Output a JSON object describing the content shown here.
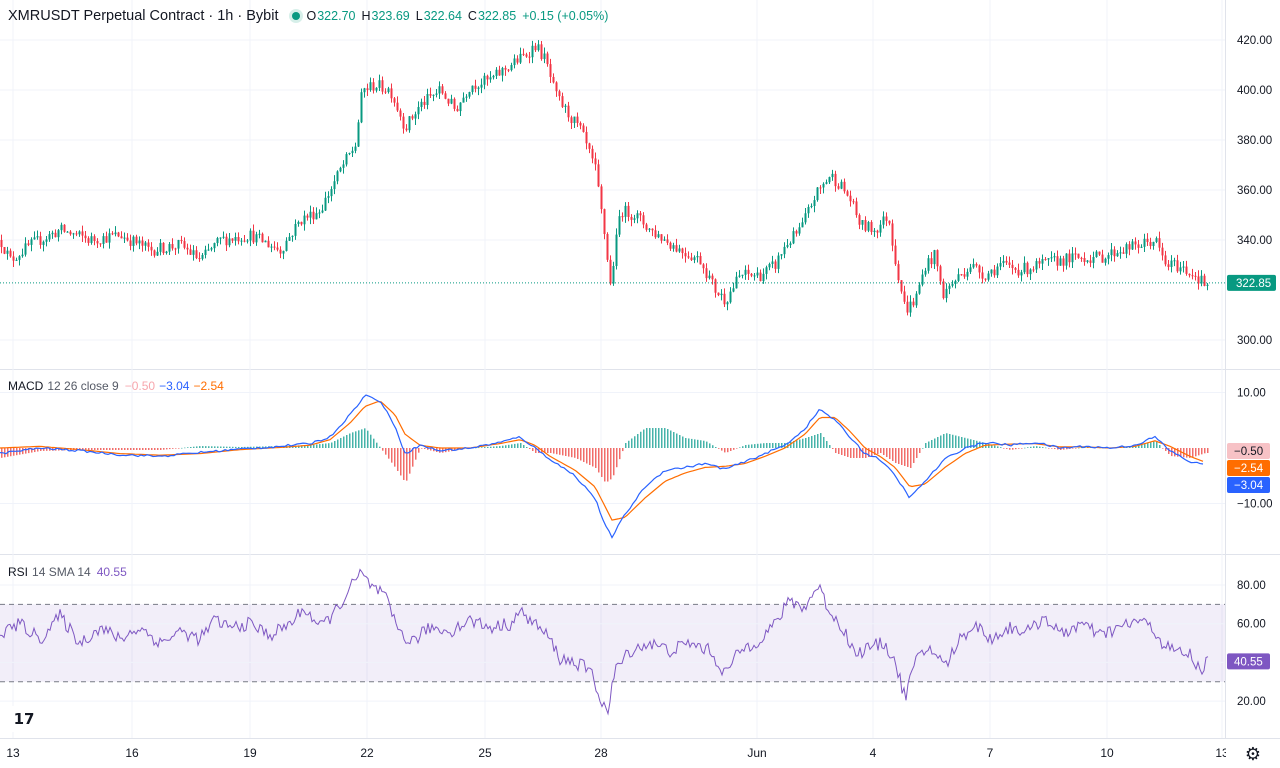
{
  "header": {
    "symbol_title": "XMRUSDT Perpetual Contract · 1h · Bybit",
    "ohlc": {
      "o_label": "O",
      "o": "322.70",
      "h_label": "H",
      "h": "323.69",
      "l_label": "L",
      "l": "322.64",
      "c_label": "C",
      "c": "322.85",
      "change": "+0.15 (+0.05%)"
    }
  },
  "macd_legend": {
    "name": "MACD",
    "params": "12 26 close 9",
    "hist": "−0.50",
    "macd": "−3.04",
    "signal": "−2.54"
  },
  "rsi_legend": {
    "name": "RSI",
    "params": "14 SMA 14",
    "value": "40.55"
  },
  "colors": {
    "up": "#089981",
    "down": "#f23645",
    "macd": "#2962ff",
    "signal": "#ff6d00",
    "rsi": "#7e57c2",
    "hist_up": "#26a69a",
    "hist_down": "#ef5350"
  },
  "icons": {
    "logo": "tradingview-logo-icon",
    "settings": "gear-icon"
  },
  "chart_data": [
    {
      "type": "candlestick",
      "title": "XMRUSDT Perpetual Contract · 1h · Bybit",
      "x_ticks": [
        "13",
        "16",
        "19",
        "22",
        "25",
        "28",
        "Jun",
        "4",
        "7",
        "10",
        "13"
      ],
      "y_ticks": [
        "420.00",
        "400.00",
        "380.00",
        "360.00",
        "340.00",
        "300.00"
      ],
      "ylim": [
        294,
        424
      ],
      "last_price": "322.85",
      "close_path": [
        [
          0,
          340
        ],
        [
          10,
          332
        ],
        [
          30,
          338
        ],
        [
          60,
          344
        ],
        [
          90,
          340
        ],
        [
          120,
          342
        ],
        [
          150,
          336
        ],
        [
          180,
          338
        ],
        [
          200,
          332
        ],
        [
          220,
          340
        ],
        [
          250,
          342
        ],
        [
          280,
          336
        ],
        [
          300,
          348
        ],
        [
          320,
          352
        ],
        [
          340,
          368
        ],
        [
          355,
          378
        ],
        [
          362,
          400
        ],
        [
          375,
          402
        ],
        [
          390,
          400
        ],
        [
          405,
          385
        ],
        [
          420,
          394
        ],
        [
          440,
          400
        ],
        [
          455,
          392
        ],
        [
          470,
          402
        ],
        [
          490,
          404
        ],
        [
          510,
          410
        ],
        [
          525,
          414
        ],
        [
          535,
          418
        ],
        [
          545,
          412
        ],
        [
          555,
          398
        ],
        [
          565,
          392
        ],
        [
          580,
          384
        ],
        [
          595,
          368
        ],
        [
          605,
          340
        ],
        [
          610,
          322
        ],
        [
          620,
          352
        ],
        [
          635,
          350
        ],
        [
          650,
          344
        ],
        [
          665,
          340
        ],
        [
          680,
          336
        ],
        [
          700,
          332
        ],
        [
          715,
          320
        ],
        [
          725,
          316
        ],
        [
          740,
          326
        ],
        [
          760,
          326
        ],
        [
          775,
          330
        ],
        [
          785,
          338
        ],
        [
          800,
          344
        ],
        [
          815,
          358
        ],
        [
          830,
          366
        ],
        [
          840,
          362
        ],
        [
          850,
          356
        ],
        [
          860,
          346
        ],
        [
          875,
          344
        ],
        [
          888,
          350
        ],
        [
          895,
          332
        ],
        [
          905,
          312
        ],
        [
          915,
          316
        ],
        [
          925,
          330
        ],
        [
          935,
          334
        ],
        [
          942,
          318
        ],
        [
          955,
          324
        ],
        [
          970,
          330
        ],
        [
          985,
          326
        ],
        [
          1000,
          330
        ],
        [
          1020,
          328
        ],
        [
          1040,
          330
        ],
        [
          1060,
          332
        ],
        [
          1080,
          333
        ],
        [
          1100,
          333
        ],
        [
          1120,
          336
        ],
        [
          1140,
          338
        ],
        [
          1155,
          340
        ],
        [
          1165,
          330
        ],
        [
          1175,
          330
        ],
        [
          1185,
          328
        ],
        [
          1195,
          326
        ],
        [
          1205,
          322
        ]
      ]
    },
    {
      "type": "line",
      "title": "MACD 12 26 close 9",
      "y_ticks": [
        "10.00",
        "−10.00"
      ],
      "ylim": [
        -17,
        12
      ],
      "series": [
        {
          "name": "MACD",
          "values": [
            [
              0,
              -1
            ],
            [
              40,
              0
            ],
            [
              80,
              -0.5
            ],
            [
              120,
              -1.2
            ],
            [
              160,
              -1.5
            ],
            [
              200,
              -0.8
            ],
            [
              240,
              -0.2
            ],
            [
              280,
              0.3
            ],
            [
              310,
              0.8
            ],
            [
              330,
              2
            ],
            [
              350,
              6
            ],
            [
              365,
              9.5
            ],
            [
              380,
              8.5
            ],
            [
              395,
              4
            ],
            [
              405,
              -1
            ],
            [
              420,
              0.5
            ],
            [
              440,
              -0.5
            ],
            [
              470,
              0
            ],
            [
              500,
              1
            ],
            [
              520,
              2
            ],
            [
              535,
              0
            ],
            [
              550,
              -2
            ],
            [
              575,
              -5
            ],
            [
              595,
              -9
            ],
            [
              605,
              -14
            ],
            [
              612,
              -16
            ],
            [
              625,
              -12
            ],
            [
              645,
              -7
            ],
            [
              665,
              -4
            ],
            [
              685,
              -3.5
            ],
            [
              705,
              -2.8
            ],
            [
              725,
              -3.8
            ],
            [
              745,
              -2.5
            ],
            [
              765,
              -1
            ],
            [
              785,
              0.5
            ],
            [
              805,
              3.5
            ],
            [
              820,
              7
            ],
            [
              835,
              5
            ],
            [
              850,
              2
            ],
            [
              865,
              -1
            ],
            [
              880,
              -2
            ],
            [
              895,
              -5
            ],
            [
              910,
              -9
            ],
            [
              925,
              -6
            ],
            [
              945,
              -2
            ],
            [
              965,
              0
            ],
            [
              985,
              1
            ],
            [
              1010,
              0.5
            ],
            [
              1035,
              1
            ],
            [
              1060,
              0
            ],
            [
              1085,
              0.3
            ],
            [
              1110,
              0
            ],
            [
              1135,
              0.5
            ],
            [
              1155,
              2
            ],
            [
              1170,
              -0.5
            ],
            [
              1190,
              -2.5
            ],
            [
              1205,
              -3.04
            ]
          ]
        },
        {
          "name": "Signal",
          "values": [
            [
              0,
              0
            ],
            [
              40,
              0.3
            ],
            [
              80,
              -0.3
            ],
            [
              120,
              -1
            ],
            [
              160,
              -1.3
            ],
            [
              200,
              -1
            ],
            [
              240,
              -0.3
            ],
            [
              280,
              0.1
            ],
            [
              310,
              0.5
            ],
            [
              330,
              1.5
            ],
            [
              350,
              4.5
            ],
            [
              365,
              7.5
            ],
            [
              380,
              8.5
            ],
            [
              395,
              6
            ],
            [
              405,
              2.5
            ],
            [
              420,
              0.5
            ],
            [
              440,
              0
            ],
            [
              470,
              0
            ],
            [
              500,
              0.8
            ],
            [
              520,
              1.5
            ],
            [
              535,
              0.5
            ],
            [
              550,
              -1.5
            ],
            [
              575,
              -4
            ],
            [
              595,
              -7
            ],
            [
              605,
              -10.5
            ],
            [
              612,
              -13
            ],
            [
              625,
              -12.5
            ],
            [
              645,
              -9
            ],
            [
              665,
              -6
            ],
            [
              685,
              -4.5
            ],
            [
              705,
              -3.5
            ],
            [
              725,
              -3.3
            ],
            [
              745,
              -2.8
            ],
            [
              765,
              -1.5
            ],
            [
              785,
              0
            ],
            [
              805,
              2.5
            ],
            [
              820,
              5.5
            ],
            [
              835,
              5.5
            ],
            [
              850,
              3
            ],
            [
              865,
              0
            ],
            [
              880,
              -1.5
            ],
            [
              895,
              -3.5
            ],
            [
              910,
              -7
            ],
            [
              925,
              -6.5
            ],
            [
              945,
              -3.5
            ],
            [
              965,
              -1
            ],
            [
              985,
              0.5
            ],
            [
              1010,
              0.7
            ],
            [
              1035,
              0.8
            ],
            [
              1060,
              0.2
            ],
            [
              1085,
              0.2
            ],
            [
              1110,
              0
            ],
            [
              1135,
              0.3
            ],
            [
              1155,
              1.3
            ],
            [
              1170,
              0.3
            ],
            [
              1190,
              -1.5
            ],
            [
              1205,
              -2.54
            ]
          ]
        }
      ]
    },
    {
      "type": "line",
      "title": "RSI 14 SMA 14",
      "y_ticks": [
        "80.00",
        "60.00",
        "40.00",
        "20.00"
      ],
      "ylim": [
        10,
        92
      ],
      "bands": [
        30,
        70
      ],
      "series": [
        {
          "name": "RSI",
          "values": [
            [
              0,
              55
            ],
            [
              20,
              60
            ],
            [
              40,
              52
            ],
            [
              60,
              64
            ],
            [
              80,
              50
            ],
            [
              100,
              58
            ],
            [
              120,
              52
            ],
            [
              140,
              58
            ],
            [
              160,
              50
            ],
            [
              180,
              56
            ],
            [
              200,
              52
            ],
            [
              215,
              62
            ],
            [
              230,
              58
            ],
            [
              250,
              60
            ],
            [
              270,
              54
            ],
            [
              290,
              60
            ],
            [
              305,
              68
            ],
            [
              320,
              58
            ],
            [
              335,
              66
            ],
            [
              350,
              78
            ],
            [
              360,
              86
            ],
            [
              370,
              80
            ],
            [
              385,
              74
            ],
            [
              395,
              60
            ],
            [
              410,
              50
            ],
            [
              430,
              58
            ],
            [
              450,
              56
            ],
            [
              470,
              62
            ],
            [
              490,
              58
            ],
            [
              510,
              60
            ],
            [
              520,
              66
            ],
            [
              535,
              60
            ],
            [
              550,
              52
            ],
            [
              560,
              42
            ],
            [
              575,
              40
            ],
            [
              590,
              36
            ],
            [
              600,
              22
            ],
            [
              608,
              14
            ],
            [
              615,
              36
            ],
            [
              630,
              46
            ],
            [
              650,
              50
            ],
            [
              670,
              46
            ],
            [
              690,
              50
            ],
            [
              710,
              46
            ],
            [
              725,
              34
            ],
            [
              740,
              46
            ],
            [
              760,
              52
            ],
            [
              775,
              60
            ],
            [
              790,
              72
            ],
            [
              805,
              68
            ],
            [
              818,
              80
            ],
            [
              830,
              66
            ],
            [
              845,
              56
            ],
            [
              855,
              44
            ],
            [
              870,
              48
            ],
            [
              885,
              50
            ],
            [
              895,
              40
            ],
            [
              905,
              22
            ],
            [
              915,
              40
            ],
            [
              930,
              48
            ],
            [
              945,
              38
            ],
            [
              960,
              52
            ],
            [
              975,
              60
            ],
            [
              990,
              52
            ],
            [
              1010,
              58
            ],
            [
              1030,
              56
            ],
            [
              1045,
              64
            ],
            [
              1060,
              54
            ],
            [
              1080,
              60
            ],
            [
              1100,
              54
            ],
            [
              1120,
              58
            ],
            [
              1140,
              62
            ],
            [
              1155,
              56
            ],
            [
              1165,
              48
            ],
            [
              1175,
              46
            ],
            [
              1190,
              44
            ],
            [
              1200,
              36
            ],
            [
              1208,
              40.55
            ]
          ]
        }
      ]
    }
  ]
}
